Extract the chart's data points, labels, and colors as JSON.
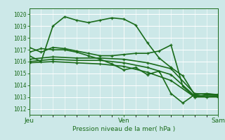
{
  "background_color": "#cce8e8",
  "grid_color": "#ffffff",
  "xlabel": "Pression niveau de la mer( hPa )",
  "xtick_labels": [
    "Jeu",
    "Ven",
    "Sam"
  ],
  "xtick_positions": [
    0,
    48,
    96
  ],
  "xlim": [
    0,
    96
  ],
  "ylim": [
    1011.5,
    1020.5
  ],
  "yticks": [
    1012,
    1013,
    1014,
    1015,
    1016,
    1017,
    1018,
    1019,
    1020
  ],
  "series": [
    {
      "x": [
        0,
        6,
        12,
        18,
        24,
        30,
        36,
        42,
        48,
        54,
        60,
        66,
        72,
        78,
        84,
        90,
        96
      ],
      "y": [
        1016.5,
        1016.0,
        1019.0,
        1019.8,
        1019.5,
        1019.3,
        1019.5,
        1019.7,
        1019.6,
        1019.1,
        1017.6,
        1016.3,
        1015.5,
        1014.8,
        1013.2,
        1013.3,
        1013.2
      ],
      "lw": 1.2,
      "marker": "+"
    },
    {
      "x": [
        0,
        6,
        12,
        18,
        24,
        30,
        36,
        42,
        48,
        54,
        60,
        66,
        72,
        78,
        84,
        90,
        96
      ],
      "y": [
        1017.2,
        1016.8,
        1017.2,
        1017.1,
        1016.9,
        1016.7,
        1016.5,
        1016.5,
        1016.6,
        1016.7,
        1016.7,
        1016.9,
        1017.4,
        1013.9,
        1013.0,
        1013.2,
        1013.2
      ],
      "lw": 1.2,
      "marker": "+"
    },
    {
      "x": [
        0,
        12,
        24,
        36,
        48,
        60,
        72,
        84,
        96
      ],
      "y": [
        1016.2,
        1016.4,
        1016.3,
        1016.3,
        1016.2,
        1015.9,
        1015.4,
        1013.3,
        1013.2
      ],
      "lw": 1.2,
      "marker": "+"
    },
    {
      "x": [
        0,
        12,
        24,
        36,
        48,
        60,
        72,
        84,
        96
      ],
      "y": [
        1016.0,
        1016.2,
        1016.1,
        1016.1,
        1015.9,
        1015.5,
        1014.9,
        1013.1,
        1013.1
      ],
      "lw": 1.2,
      "marker": "+"
    },
    {
      "x": [
        0,
        12,
        24,
        36,
        48,
        60,
        72,
        84,
        96
      ],
      "y": [
        1015.9,
        1016.0,
        1015.9,
        1015.8,
        1015.6,
        1015.1,
        1014.4,
        1013.0,
        1013.0
      ],
      "lw": 1.2,
      "marker": "+"
    },
    {
      "x": [
        0,
        6,
        12,
        18,
        24,
        30,
        36,
        42,
        48,
        54,
        60,
        66,
        72,
        78,
        84,
        90,
        96
      ],
      "y": [
        1016.8,
        1017.1,
        1017.0,
        1017.0,
        1016.8,
        1016.5,
        1016.2,
        1015.8,
        1015.3,
        1015.5,
        1014.9,
        1015.2,
        1013.3,
        1012.5,
        1013.2,
        1013.0,
        1013.1
      ],
      "lw": 1.2,
      "marker": "+"
    }
  ]
}
